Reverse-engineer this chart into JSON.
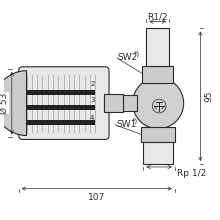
{
  "bg_color": "#ffffff",
  "line_color": "#2a2a2a",
  "dim_107": "107",
  "dim_53": "Ø 53",
  "dim_95": "95",
  "dim_r12": "R1/2",
  "dim_rp12": "Rp 1/2",
  "sw1": "SW1",
  "sw2": "SW2",
  "star": "*)",
  "nums": [
    "2",
    "3",
    "4"
  ],
  "gray_light": "#e8e8e8",
  "gray_mid": "#cccccc",
  "gray_dark": "#aaaaaa",
  "gray_body": "#d0d0d0",
  "gray_thread": "#b8b8b8",
  "black_band": "#222222",
  "font_dim": 6.5,
  "font_label": 6.5
}
